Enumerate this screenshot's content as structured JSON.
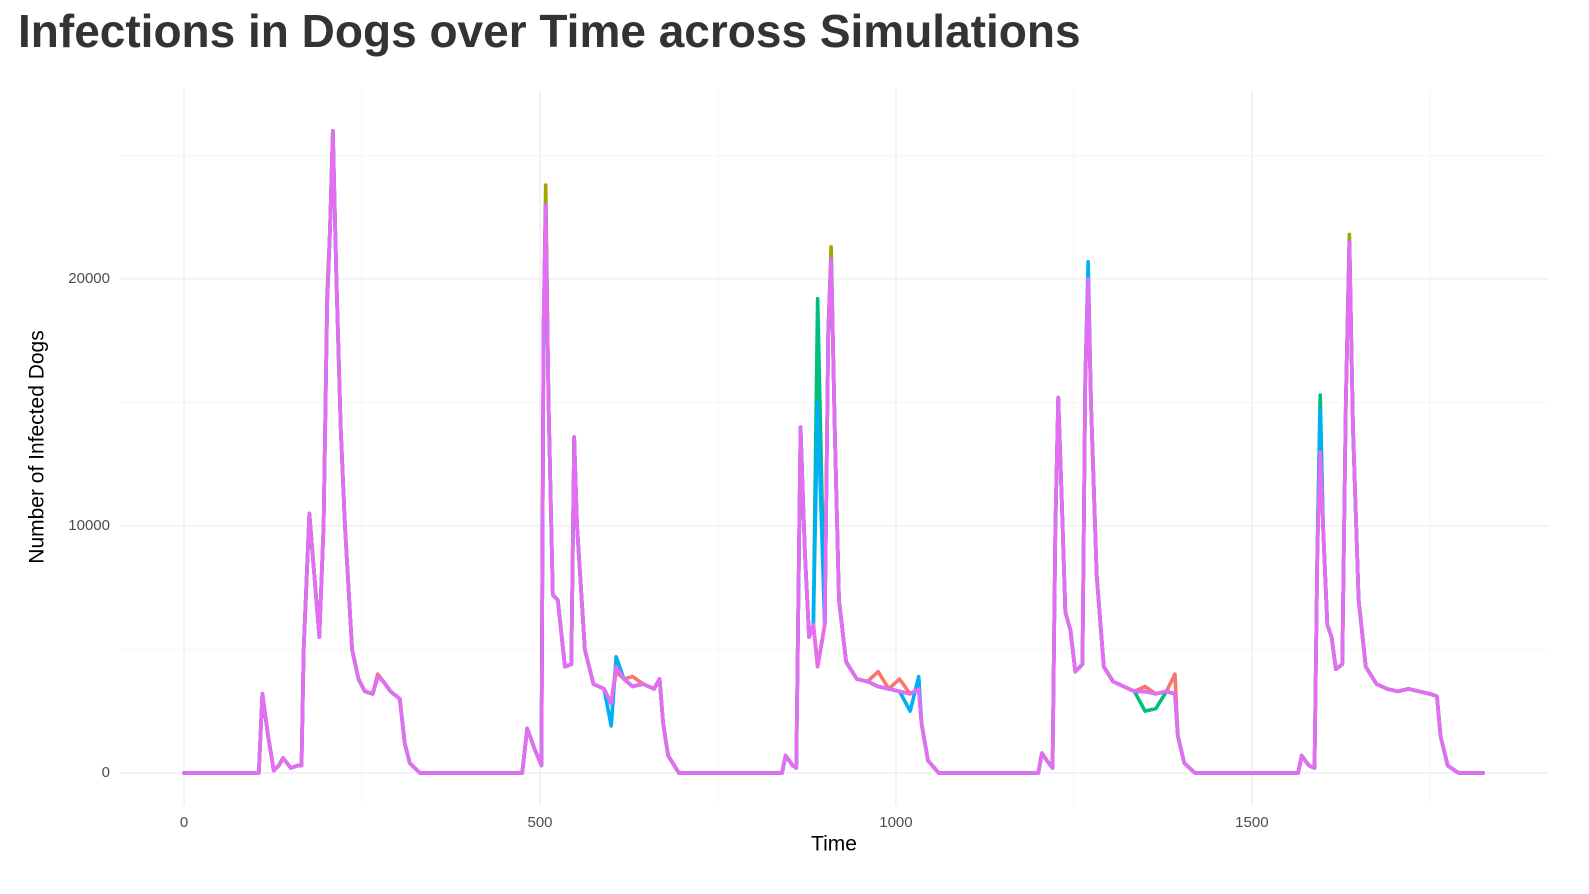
{
  "chart_data": {
    "type": "line",
    "title": "Infections in Dogs over Time across Simulations",
    "x_label": "Time",
    "y_label": "Number of Infected Dogs",
    "xlim": [
      -90,
      1916
    ],
    "ylim": [
      -1300,
      27650
    ],
    "xticks": [
      0,
      500,
      1000,
      1500
    ],
    "yticks": [
      0,
      10000,
      20000
    ],
    "xminor": [
      250,
      750,
      1250,
      1750
    ],
    "yminor": [
      5000,
      15000,
      25000
    ],
    "grid": true,
    "legend": false,
    "x": [
      0,
      105,
      110,
      118,
      126,
      133,
      139,
      150,
      160,
      165,
      168,
      176,
      183,
      190,
      196,
      201,
      205,
      209,
      214,
      220,
      226,
      236,
      245,
      254,
      265,
      272,
      280,
      290,
      303,
      310,
      317,
      331,
      475,
      482,
      492,
      502,
      505,
      508,
      512,
      518,
      525,
      535,
      544,
      548,
      552,
      563,
      575,
      590,
      600,
      607,
      618,
      630,
      645,
      660,
      668,
      673,
      680,
      695,
      840,
      845,
      855,
      860,
      866,
      872,
      878,
      884,
      890,
      900,
      905,
      909,
      914,
      920,
      930,
      945,
      960,
      975,
      990,
      1005,
      1020,
      1032,
      1036,
      1045,
      1060,
      1200,
      1205,
      1212,
      1220,
      1224,
      1228,
      1233,
      1238,
      1245,
      1252,
      1262,
      1266,
      1270,
      1274,
      1282,
      1292,
      1305,
      1320,
      1335,
      1350,
      1365,
      1380,
      1392,
      1396,
      1405,
      1420,
      1565,
      1570,
      1580,
      1588,
      1592,
      1596,
      1600,
      1606,
      1612,
      1618,
      1627,
      1632,
      1637,
      1642,
      1650,
      1660,
      1675,
      1690,
      1705,
      1720,
      1735,
      1750,
      1760,
      1765,
      1775,
      1790,
      1825
    ],
    "series": [
      {
        "color": "#F8766D",
        "values": [
          0,
          0,
          3200,
          1500,
          100,
          300,
          600,
          200,
          300,
          300,
          5000,
          10500,
          8000,
          5500,
          10000,
          19000,
          22000,
          26000,
          20000,
          14000,
          10000,
          5000,
          3800,
          3300,
          3200,
          4000,
          3700,
          3300,
          3000,
          1200,
          400,
          0,
          0,
          1800,
          1000,
          300,
          18000,
          23000,
          15000,
          7200,
          7000,
          4300,
          4400,
          13600,
          10000,
          5000,
          3600,
          3400,
          2800,
          4100,
          3800,
          3900,
          3600,
          3400,
          3800,
          2000,
          700,
          0,
          0,
          700,
          300,
          200,
          14000,
          9000,
          5500,
          6000,
          4300,
          6000,
          18000,
          20800,
          14000,
          7000,
          4500,
          3800,
          3700,
          4100,
          3400,
          3800,
          3200,
          3400,
          2000,
          500,
          0,
          0,
          800,
          500,
          200,
          10000,
          15200,
          11000,
          6500,
          5800,
          4100,
          4400,
          16000,
          20000,
          15000,
          8000,
          4300,
          3700,
          3500,
          3300,
          3500,
          3200,
          3300,
          4000,
          1500,
          400,
          0,
          0,
          700,
          300,
          200,
          9000,
          14500,
          10000,
          6000,
          5500,
          4200,
          4400,
          15000,
          21500,
          14000,
          7000,
          4300,
          3600,
          3400,
          3300,
          3400,
          3300,
          3200,
          3100,
          1500,
          300,
          0,
          0
        ]
      },
      {
        "color": "#A3A500",
        "values": [
          0,
          0,
          3200,
          1500,
          100,
          300,
          600,
          200,
          300,
          300,
          5000,
          10500,
          8000,
          5500,
          10000,
          19500,
          22000,
          26000,
          20000,
          14000,
          10000,
          5000,
          3800,
          3300,
          3200,
          3900,
          3700,
          3300,
          3000,
          1200,
          400,
          0,
          0,
          1800,
          1000,
          300,
          18000,
          23800,
          15000,
          7200,
          7000,
          4300,
          4400,
          13600,
          10000,
          5000,
          3600,
          3400,
          2800,
          4300,
          3800,
          3500,
          3600,
          3400,
          3800,
          2000,
          700,
          0,
          0,
          700,
          300,
          200,
          14000,
          9000,
          5500,
          6000,
          4300,
          6000,
          18000,
          21300,
          14000,
          7000,
          4500,
          3800,
          3700,
          3500,
          3400,
          3300,
          3200,
          3400,
          2000,
          500,
          0,
          0,
          800,
          500,
          200,
          10000,
          15200,
          11000,
          6500,
          5800,
          4100,
          4400,
          16000,
          20000,
          15000,
          8000,
          4300,
          3700,
          3500,
          3300,
          3300,
          3200,
          3300,
          3200,
          1500,
          400,
          0,
          0,
          700,
          300,
          200,
          9000,
          13000,
          10000,
          6000,
          5500,
          4200,
          4400,
          15000,
          21800,
          14000,
          7000,
          4300,
          3600,
          3400,
          3300,
          3400,
          3300,
          3200,
          3100,
          1500,
          300,
          0,
          0
        ]
      },
      {
        "color": "#00BF7D",
        "values": [
          0,
          0,
          3200,
          1500,
          100,
          300,
          600,
          200,
          300,
          300,
          5000,
          10500,
          8000,
          5500,
          10000,
          19000,
          22000,
          26000,
          20000,
          14000,
          10000,
          5000,
          3800,
          3300,
          3200,
          3900,
          3700,
          3300,
          3000,
          1200,
          400,
          0,
          0,
          1800,
          1000,
          300,
          18000,
          23000,
          15000,
          7200,
          7000,
          4300,
          4400,
          13600,
          10000,
          5000,
          3600,
          3400,
          2800,
          4300,
          3800,
          3500,
          3600,
          3400,
          3800,
          2000,
          700,
          0,
          0,
          700,
          300,
          200,
          14000,
          9000,
          5500,
          6000,
          19200,
          6000,
          18000,
          20800,
          14000,
          7000,
          4500,
          3800,
          3700,
          3500,
          3400,
          3300,
          3200,
          3400,
          2000,
          500,
          0,
          0,
          800,
          500,
          200,
          10000,
          15200,
          11000,
          6500,
          5800,
          4100,
          4400,
          16000,
          20000,
          15000,
          8000,
          4300,
          3700,
          3500,
          3300,
          2500,
          2600,
          3300,
          3200,
          1500,
          400,
          0,
          0,
          700,
          300,
          200,
          9000,
          15300,
          10000,
          6000,
          5500,
          4200,
          4400,
          15000,
          21500,
          14000,
          7000,
          4300,
          3600,
          3400,
          3300,
          3400,
          3300,
          3200,
          3100,
          1500,
          300,
          0,
          0
        ]
      },
      {
        "color": "#00B0F6",
        "values": [
          0,
          0,
          3200,
          1500,
          100,
          300,
          600,
          200,
          300,
          300,
          5000,
          10500,
          8000,
          5500,
          10000,
          19000,
          22000,
          26000,
          20000,
          14000,
          10000,
          5000,
          3800,
          3300,
          3200,
          3900,
          3700,
          3300,
          3000,
          1200,
          400,
          0,
          0,
          1800,
          1000,
          300,
          18000,
          23000,
          15000,
          7200,
          7000,
          4300,
          4400,
          13600,
          10000,
          5000,
          3600,
          3400,
          1900,
          4700,
          3800,
          3500,
          3600,
          3400,
          3800,
          2000,
          700,
          0,
          0,
          700,
          300,
          200,
          14000,
          9000,
          5500,
          6000,
          15000,
          6000,
          18000,
          20800,
          14000,
          7000,
          4500,
          3800,
          3700,
          3500,
          3400,
          3300,
          2500,
          3900,
          2000,
          500,
          0,
          0,
          800,
          500,
          200,
          10000,
          15200,
          11000,
          6500,
          5800,
          4100,
          4400,
          16000,
          20700,
          15000,
          8000,
          4300,
          3700,
          3500,
          3300,
          3300,
          3200,
          3300,
          3200,
          1500,
          400,
          0,
          0,
          700,
          300,
          200,
          9000,
          14700,
          10000,
          6000,
          5500,
          4200,
          4400,
          15000,
          21500,
          14000,
          7000,
          4300,
          3600,
          3400,
          3300,
          3400,
          3300,
          3200,
          3100,
          1500,
          300,
          0,
          0
        ]
      },
      {
        "color": "#E76BF3",
        "values": [
          0,
          0,
          3200,
          1500,
          100,
          300,
          600,
          200,
          300,
          300,
          5000,
          10500,
          8000,
          5500,
          10000,
          19000,
          22000,
          26000,
          20000,
          14000,
          10000,
          5000,
          3800,
          3300,
          3200,
          3900,
          3700,
          3300,
          3000,
          1200,
          400,
          0,
          0,
          1800,
          1000,
          300,
          18000,
          23000,
          15000,
          7200,
          7000,
          4300,
          4400,
          13600,
          10000,
          5000,
          3600,
          3400,
          2800,
          4300,
          3800,
          3500,
          3600,
          3400,
          3800,
          2000,
          700,
          0,
          0,
          700,
          300,
          200,
          14000,
          9000,
          5500,
          6000,
          4300,
          6000,
          18000,
          20800,
          14000,
          7000,
          4500,
          3800,
          3700,
          3500,
          3400,
          3300,
          3200,
          3400,
          2000,
          500,
          0,
          0,
          800,
          500,
          200,
          10000,
          15200,
          11000,
          6500,
          5800,
          4100,
          4400,
          16000,
          20000,
          15000,
          8000,
          4300,
          3700,
          3500,
          3300,
          3300,
          3200,
          3300,
          3200,
          1500,
          400,
          0,
          0,
          700,
          300,
          200,
          9000,
          13000,
          10000,
          6000,
          5500,
          4200,
          4400,
          15000,
          21500,
          14000,
          7000,
          4300,
          3600,
          3400,
          3300,
          3400,
          3300,
          3200,
          3100,
          1500,
          300,
          0,
          0
        ]
      }
    ]
  }
}
